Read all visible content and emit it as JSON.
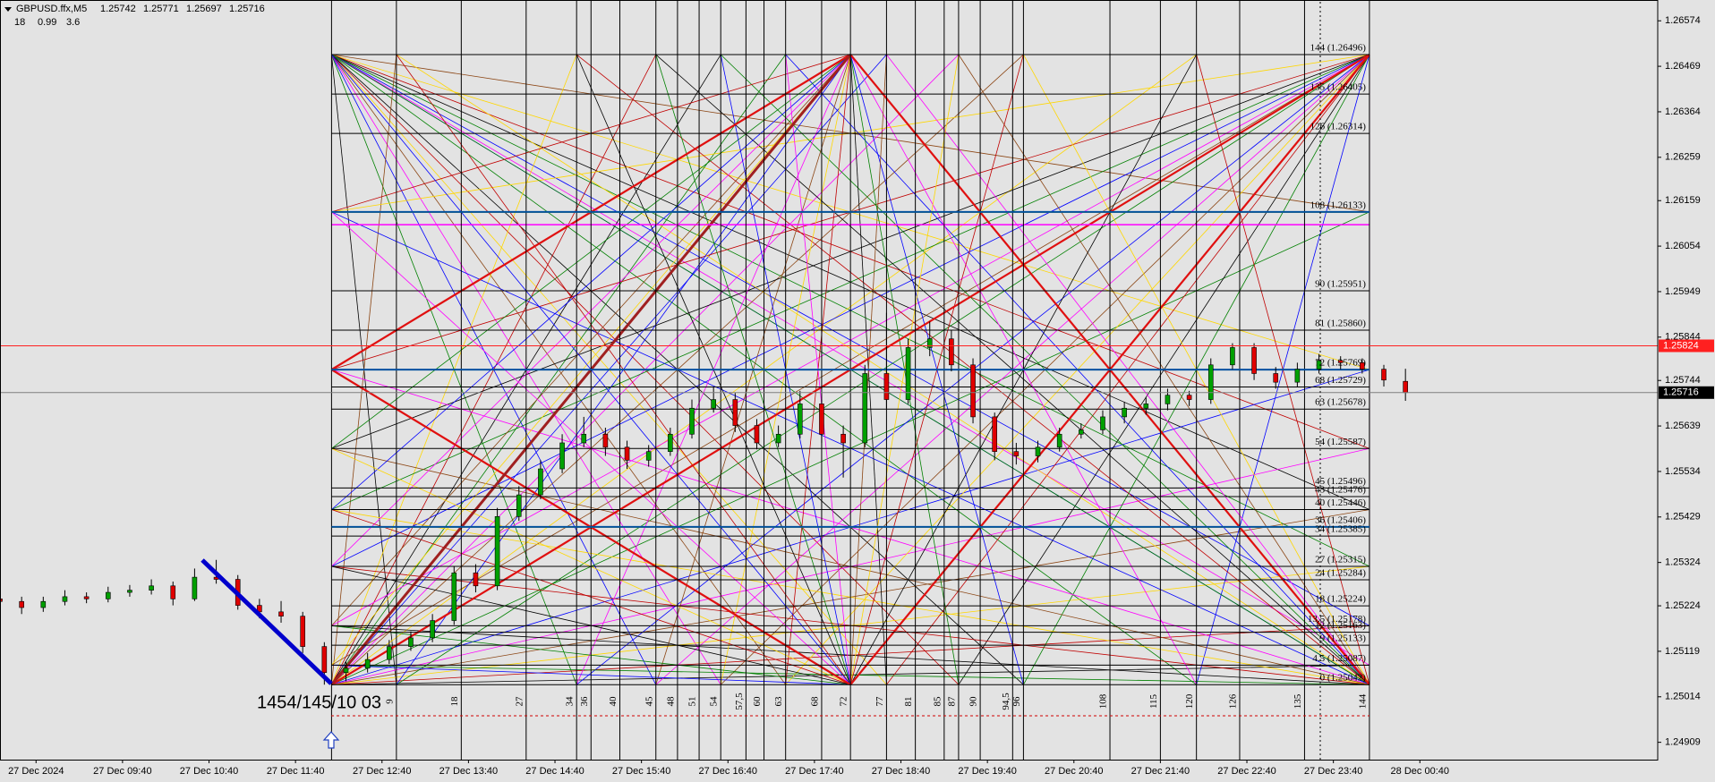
{
  "chart_data": {
    "type": "candlestick",
    "symbol": "GBPUSD.ffx,M5",
    "info_values": [
      18,
      0.99,
      3.6
    ],
    "annotation": "1454/145/10 03",
    "xlim": [
      0,
      230
    ],
    "ylim": [
      1.24869,
      1.26622
    ],
    "yticks": [
      1.26574,
      1.26469,
      1.26364,
      1.26259,
      1.26159,
      1.26054,
      1.25949,
      1.25844,
      1.25744,
      1.25639,
      1.25534,
      1.25429,
      1.25324,
      1.25224,
      1.25119,
      1.25014,
      1.24909
    ],
    "xticks": [
      {
        "value": 5,
        "label": "27 Dec 2024"
      },
      {
        "value": 17,
        "label": "27 Dec 09:40"
      },
      {
        "value": 29,
        "label": "27 Dec 10:40"
      },
      {
        "value": 41,
        "label": "27 Dec 11:40"
      },
      {
        "value": 53,
        "label": "27 Dec 12:40"
      },
      {
        "value": 65,
        "label": "27 Dec 13:40"
      },
      {
        "value": 77,
        "label": "27 Dec 14:40"
      },
      {
        "value": 89,
        "label": "27 Dec 15:40"
      },
      {
        "value": 101,
        "label": "27 Dec 16:40"
      },
      {
        "value": 113,
        "label": "27 Dec 17:40"
      },
      {
        "value": 125,
        "label": "27 Dec 18:40"
      },
      {
        "value": 137,
        "label": "27 Dec 19:40"
      },
      {
        "value": 149,
        "label": "27 Dec 20:40"
      },
      {
        "value": 161,
        "label": "27 Dec 21:40"
      },
      {
        "value": 173,
        "label": "27 Dec 22:40"
      },
      {
        "value": 185,
        "label": "27 Dec 23:40"
      },
      {
        "value": 197,
        "label": "28 Dec 00:40"
      }
    ],
    "ask_line": 1.25824,
    "bull_color": "#00a000",
    "bear_color": "#e00000",
    "candles": {
      "x": [
        0,
        3,
        6,
        9,
        12,
        15,
        18,
        21,
        24,
        27,
        30,
        33,
        36,
        39,
        42,
        45,
        48,
        51,
        54,
        57,
        60,
        63,
        66,
        69,
        72,
        75,
        78,
        81,
        84,
        87,
        90,
        93,
        96,
        99,
        102,
        105,
        108,
        111,
        114,
        117,
        120,
        123,
        126,
        129,
        132,
        135,
        138,
        141,
        144,
        147,
        150,
        153,
        156,
        159,
        162,
        165,
        168,
        171,
        174,
        177,
        180,
        183,
        186,
        189,
        192,
        195
      ],
      "open": [
        1.2524,
        1.25234,
        1.2522,
        1.25234,
        1.25245,
        1.2524,
        1.25255,
        1.2526,
        1.2527,
        1.2524,
        1.2529,
        1.25285,
        1.25225,
        1.2521,
        1.252,
        1.2513,
        1.2507,
        1.2508,
        1.251,
        1.2513,
        1.2515,
        1.2519,
        1.253,
        1.2527,
        1.2543,
        1.2548,
        1.2554,
        1.256,
        1.2562,
        1.2559,
        1.2556,
        1.2558,
        1.2562,
        1.2568,
        1.257,
        1.2564,
        1.256,
        1.2562,
        1.2569,
        1.2562,
        1.256,
        1.2576,
        1.257,
        1.2582,
        1.2584,
        1.2578,
        1.2566,
        1.2558,
        1.2557,
        1.2559,
        1.2562,
        1.2563,
        1.2566,
        1.2568,
        1.2569,
        1.2571,
        1.257,
        1.2578,
        1.2582,
        1.2576,
        1.2574,
        1.2577,
        1.2579,
        1.25785,
        1.2577,
        1.25742
      ],
      "high": [
        1.25255,
        1.25245,
        1.25245,
        1.2526,
        1.25255,
        1.25268,
        1.25272,
        1.25285,
        1.2528,
        1.2531,
        1.2533,
        1.25295,
        1.2524,
        1.25235,
        1.2521,
        1.2514,
        1.25095,
        1.25115,
        1.25145,
        1.25165,
        1.25205,
        1.25315,
        1.2532,
        1.2545,
        1.255,
        1.2556,
        1.2562,
        1.2566,
        1.25635,
        1.25605,
        1.25595,
        1.25635,
        1.257,
        1.2573,
        1.25715,
        1.25655,
        1.2564,
        1.2572,
        1.257,
        1.2564,
        1.2578,
        1.259,
        1.2584,
        1.2588,
        1.2586,
        1.25795,
        1.2567,
        1.256,
        1.25605,
        1.25635,
        1.25645,
        1.25675,
        1.25695,
        1.25705,
        1.25725,
        1.2572,
        1.25795,
        1.2583,
        1.2583,
        1.25775,
        1.25785,
        1.25805,
        1.258,
        1.25795,
        1.2578,
        1.25771
      ],
      "low": [
        1.2522,
        1.25205,
        1.2521,
        1.25225,
        1.2523,
        1.25232,
        1.25245,
        1.2525,
        1.25225,
        1.25235,
        1.25275,
        1.25215,
        1.25195,
        1.25185,
        1.25115,
        1.25042,
        1.2505,
        1.2507,
        1.2509,
        1.2512,
        1.2514,
        1.2518,
        1.25255,
        1.2526,
        1.2542,
        1.2547,
        1.2553,
        1.2559,
        1.2557,
        1.2554,
        1.25545,
        1.2557,
        1.2561,
        1.2567,
        1.25625,
        1.25585,
        1.2559,
        1.2561,
        1.256,
        1.2552,
        1.2559,
        1.2568,
        1.2569,
        1.258,
        1.25765,
        1.25645,
        1.2556,
        1.2555,
        1.25555,
        1.2558,
        1.2561,
        1.2562,
        1.25645,
        1.25665,
        1.25675,
        1.25685,
        1.2569,
        1.2577,
        1.25745,
        1.25725,
        1.2573,
        1.2576,
        1.2577,
        1.2576,
        1.2573,
        1.25697
      ],
      "close": [
        1.25234,
        1.2522,
        1.25234,
        1.25245,
        1.2524,
        1.25255,
        1.2526,
        1.2527,
        1.2524,
        1.2529,
        1.25285,
        1.25225,
        1.2521,
        1.252,
        1.2513,
        1.2507,
        1.2508,
        1.251,
        1.2513,
        1.2515,
        1.2519,
        1.253,
        1.2527,
        1.2543,
        1.2548,
        1.2554,
        1.256,
        1.2562,
        1.2559,
        1.2556,
        1.2558,
        1.2562,
        1.2568,
        1.257,
        1.2564,
        1.256,
        1.2562,
        1.2569,
        1.2562,
        1.256,
        1.2576,
        1.257,
        1.2582,
        1.2584,
        1.2578,
        1.2566,
        1.2558,
        1.2557,
        1.2559,
        1.2562,
        1.2563,
        1.2566,
        1.2568,
        1.2569,
        1.2571,
        1.257,
        1.2578,
        1.2582,
        1.2576,
        1.2574,
        1.2577,
        1.2579,
        1.25785,
        1.2577,
        1.25745,
        1.25716
      ]
    },
    "gann_box": {
      "xlim": [
        46,
        190
      ],
      "ylim": [
        1.25042,
        1.26496
      ]
    },
    "levels": [
      {
        "value": 1.26496,
        "label": "144 (1.26496)"
      },
      {
        "value": 1.26405,
        "label": "135 (1.26405)"
      },
      {
        "value": 1.26314,
        "label": "126 (1.26314)"
      },
      {
        "value": 1.26133,
        "label": "108 (1.26133)",
        "color": "#0050a0"
      },
      {
        "value": 1.25951,
        "label": "90 (1.25951)"
      },
      {
        "value": 1.2586,
        "label": "81 (1.25860)"
      },
      {
        "value": 1.25769,
        "label": "72 (1.25769)",
        "color": "#0050a0"
      },
      {
        "value": 1.25729,
        "label": "68 (1.25729)"
      },
      {
        "value": 1.25678,
        "label": "63 (1.25678)"
      },
      {
        "value": 1.25587,
        "label": "54 (1.25587)"
      },
      {
        "value": 1.25496,
        "label": "45 (1.25496)"
      },
      {
        "value": 1.25476,
        "label": "43 (1.25476)"
      },
      {
        "value": 1.25446,
        "label": "40 (1.25446)"
      },
      {
        "value": 1.25406,
        "label": "36 (1.25406)",
        "color": "#0050a0"
      },
      {
        "value": 1.25385,
        "label": "34 (1.25385)"
      },
      {
        "value": 1.25315,
        "label": "27 (1.25315)"
      },
      {
        "value": 1.25284,
        "label": "24 (1.25284)"
      },
      {
        "value": 1.25224,
        "label": "18 (1.25224)"
      },
      {
        "value": 1.25178,
        "label": "13.5 (1.25178)"
      },
      {
        "value": 1.25163,
        "label": "12 (1.25163)"
      },
      {
        "value": 1.25133,
        "label": "9 (1.25133)"
      },
      {
        "value": 1.25087,
        "label": "4.5 (1.25087)"
      },
      {
        "value": 1.25042,
        "label": "0 (1.25042)"
      }
    ],
    "time_levels": [
      {
        "value": 55,
        "label": "9"
      },
      {
        "value": 64,
        "label": "18"
      },
      {
        "value": 73,
        "label": "27"
      },
      {
        "value": 80,
        "label": "34"
      },
      {
        "value": 82,
        "label": "36"
      },
      {
        "value": 86,
        "label": "40"
      },
      {
        "value": 91,
        "label": "45"
      },
      {
        "value": 94,
        "label": "48"
      },
      {
        "value": 97,
        "label": "51"
      },
      {
        "value": 100,
        "label": "54"
      },
      {
        "value": 103.5,
        "label": "57,5"
      },
      {
        "value": 106,
        "label": "60"
      },
      {
        "value": 109,
        "label": "63"
      },
      {
        "value": 114,
        "label": "68"
      },
      {
        "value": 118,
        "label": "72"
      },
      {
        "value": 123,
        "label": "77"
      },
      {
        "value": 127,
        "label": "81"
      },
      {
        "value": 131,
        "label": "85"
      },
      {
        "value": 133,
        "label": "87"
      },
      {
        "value": 136,
        "label": "90"
      },
      {
        "value": 140.5,
        "label": "94,5"
      },
      {
        "value": 142,
        "label": "96"
      },
      {
        "value": 154,
        "label": "108"
      },
      {
        "value": 161,
        "label": "115"
      },
      {
        "value": 166,
        "label": "120"
      },
      {
        "value": 172,
        "label": "126"
      },
      {
        "value": 181,
        "label": "135"
      },
      {
        "value": 190,
        "label": "144"
      }
    ]
  }
}
